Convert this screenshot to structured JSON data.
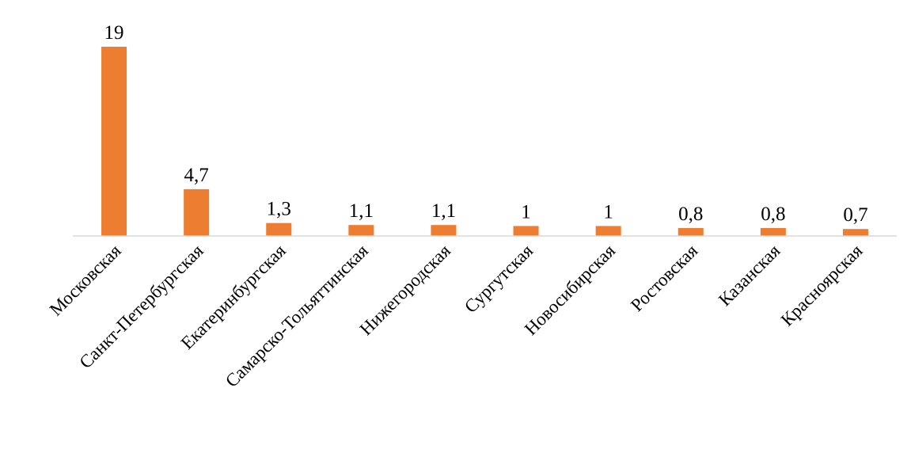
{
  "chart_data": {
    "type": "bar",
    "categories": [
      "Московская",
      "Санкт-Петербургская",
      "Екатеринбургская",
      "Самарско-Тольяттинская",
      "Нижегородская",
      "Сургутская",
      "Новосибирская",
      "Ростовская",
      "Казанская",
      "Красноярская"
    ],
    "values": [
      19,
      4.7,
      1.3,
      1.1,
      1.1,
      1,
      1,
      0.8,
      0.8,
      0.7
    ],
    "data_labels": [
      "19",
      "4,7",
      "1,3",
      "1,1",
      "1,1",
      "1",
      "1",
      "0,8",
      "0,8",
      "0,7"
    ],
    "title": "",
    "xlabel": "",
    "ylabel": "",
    "ylim": [
      0,
      19
    ],
    "grid": false,
    "legend": "none",
    "bar_color": "#ED7D31"
  }
}
